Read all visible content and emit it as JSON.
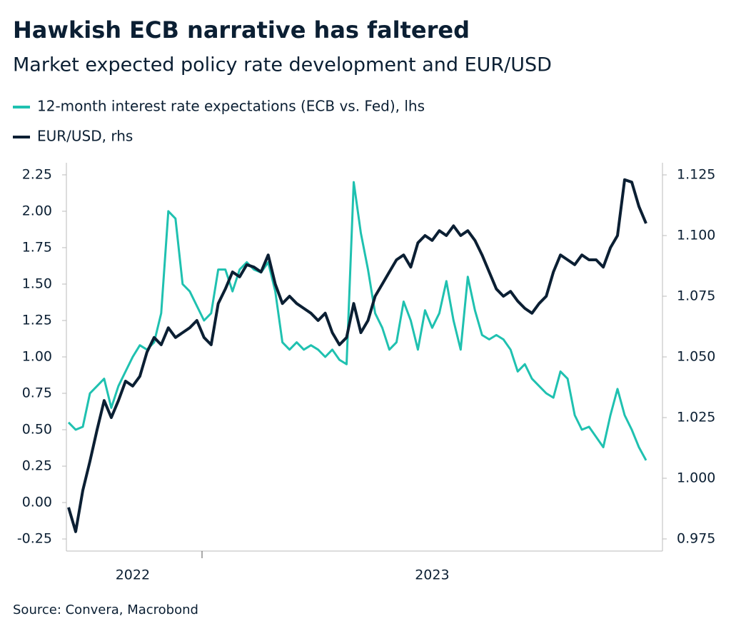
{
  "chart_data": {
    "type": "line",
    "title": "Hawkish ECB narrative has faltered",
    "subtitle": "Market expected policy rate development and EUR/USD",
    "source": "Source: Convera, Macrobond",
    "categories": [
      null,
      null,
      null,
      null,
      null,
      null,
      null,
      null,
      null,
      "2022",
      null,
      null,
      null,
      null,
      null,
      null,
      null,
      null,
      null,
      null,
      null,
      null,
      null,
      null,
      null,
      null,
      null,
      null,
      null,
      null,
      null,
      null,
      null,
      null,
      null,
      null,
      null,
      null,
      null,
      null,
      null,
      null,
      null,
      null,
      null,
      null,
      null,
      null,
      null,
      null,
      null,
      "2023",
      null,
      null,
      null,
      null,
      null,
      null,
      null,
      null,
      null,
      null,
      null,
      null,
      null,
      null,
      null,
      null,
      null,
      null,
      null,
      null,
      null,
      null,
      null,
      null,
      null,
      null,
      null,
      null,
      null,
      null
    ],
    "ylim": [
      -0.333,
      2.333
    ],
    "yticks": [
      -0.25,
      {
        "value": 0,
        "label": "0.00"
      },
      0.25,
      {
        "value": 0.5,
        "label": "0.50"
      },
      0.75,
      {
        "value": 1,
        "label": "1.00"
      },
      1.25,
      {
        "value": 1.5,
        "label": "1.50"
      },
      1.75,
      {
        "value": 2,
        "label": "2.00"
      },
      2.25
    ],
    "y2lim": [
      0.97,
      1.13
    ],
    "y2ticks": [
      0.975,
      {
        "value": 1,
        "label": "1.000"
      },
      1.025,
      {
        "value": 1.05,
        "label": "1.050"
      },
      1.075,
      {
        "value": 1.1,
        "label": "1.100"
      },
      1.125
    ],
    "series": [
      {
        "name": "12-month interest rate expectations (ECB vs. Fed), lhs",
        "color": "#1fc1b0",
        "values": [
          0.55,
          0.5,
          0.52,
          0.75,
          0.8,
          0.85,
          0.65,
          0.8,
          0.9,
          1.0,
          1.08,
          1.05,
          1.1,
          1.3,
          2.0,
          1.95,
          1.5,
          1.45,
          1.35,
          1.25,
          1.3,
          1.6,
          1.6,
          1.45,
          1.6,
          1.65,
          1.6,
          1.58,
          1.65,
          1.45,
          1.1,
          1.05,
          1.1,
          1.05,
          1.08,
          1.05,
          1.0,
          1.05,
          0.98,
          0.95,
          2.2,
          1.85,
          1.6,
          1.3,
          1.2,
          1.05,
          1.1,
          1.38,
          1.25,
          1.05,
          1.32,
          1.2,
          1.3,
          1.52,
          1.25,
          1.05,
          1.55,
          1.32,
          1.15,
          1.12,
          1.15,
          1.12,
          1.05,
          0.9,
          0.95,
          0.85,
          0.8,
          0.75,
          0.72,
          0.9,
          0.85,
          0.6,
          0.5,
          0.52,
          0.45,
          0.38,
          0.6,
          0.78,
          0.6,
          0.5,
          0.38,
          0.29
        ]
      },
      {
        "name": "EUR/USD, rhs",
        "color": "#0b1f33",
        "axis": "y2",
        "values": [
          0.988,
          0.978,
          0.995,
          1.007,
          1.02,
          1.032,
          1.025,
          1.032,
          1.04,
          1.038,
          1.042,
          1.052,
          1.058,
          1.055,
          1.062,
          1.058,
          1.06,
          1.062,
          1.065,
          1.058,
          1.055,
          1.072,
          1.078,
          1.085,
          1.083,
          1.088,
          1.087,
          1.085,
          1.092,
          1.08,
          1.072,
          1.075,
          1.072,
          1.07,
          1.068,
          1.065,
          1.068,
          1.06,
          1.055,
          1.058,
          1.072,
          1.06,
          1.065,
          1.075,
          1.08,
          1.085,
          1.09,
          1.092,
          1.087,
          1.097,
          1.1,
          1.098,
          1.102,
          1.1,
          1.104,
          1.1,
          1.102,
          1.098,
          1.092,
          1.085,
          1.078,
          1.075,
          1.077,
          1.073,
          1.07,
          1.068,
          1.072,
          1.075,
          1.085,
          1.092,
          1.09,
          1.088,
          1.092,
          1.09,
          1.09,
          1.087,
          1.095,
          1.1,
          1.123,
          1.122,
          1.112,
          1.105
        ]
      }
    ]
  }
}
